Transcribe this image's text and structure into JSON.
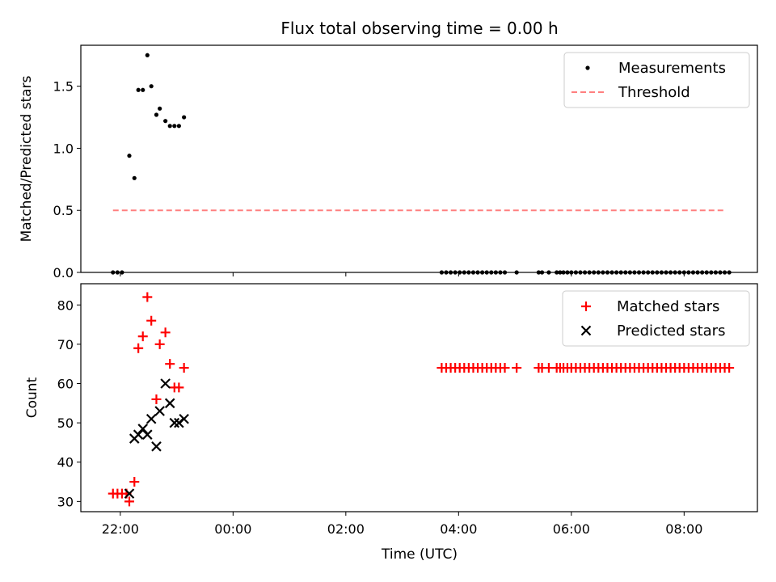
{
  "chart_data": {
    "title": "Flux total observing time = 0.00 h",
    "xlabel": "Time (UTC)",
    "x_unit": "hours since 00:00 UTC (negative = previous evening)",
    "xlim": [
      -2.7,
      9.3
    ],
    "xticks": [
      {
        "value": -2,
        "label": "22:00"
      },
      {
        "value": 0,
        "label": "00:00"
      },
      {
        "value": 2,
        "label": "02:00"
      },
      {
        "value": 4,
        "label": "04:00"
      },
      {
        "value": 6,
        "label": "06:00"
      },
      {
        "value": 8,
        "label": "08:00"
      }
    ],
    "panels": [
      {
        "type": "scatter",
        "ylabel": "Matched/Predicted stars",
        "ylim": [
          0,
          1.83
        ],
        "yticks": [
          {
            "value": 0,
            "label": "0.0"
          },
          {
            "value": 0.5,
            "label": "0.5"
          },
          {
            "value": 1.0,
            "label": "1.0"
          },
          {
            "value": 1.5,
            "label": "1.5"
          }
        ],
        "legend_position": "top-right",
        "series": [
          {
            "name": "Measurements",
            "kind": "points",
            "marker": "dot",
            "color": "#000000",
            "points": [
              [
                -2.13,
                0.0
              ],
              [
                -2.05,
                0.0
              ],
              [
                -1.97,
                0.0
              ],
              [
                -1.84,
                0.94
              ],
              [
                -1.75,
                0.76
              ],
              [
                -1.68,
                1.47
              ],
              [
                -1.6,
                1.47
              ],
              [
                -1.52,
                1.75
              ],
              [
                -1.45,
                1.5
              ],
              [
                -1.36,
                1.27
              ],
              [
                -1.3,
                1.32
              ],
              [
                -1.2,
                1.22
              ],
              [
                -1.12,
                1.18
              ],
              [
                -1.04,
                1.18
              ],
              [
                -0.96,
                1.18
              ],
              [
                -0.87,
                1.25
              ],
              [
                3.7,
                0.0
              ],
              [
                3.78,
                0.0
              ],
              [
                3.86,
                0.0
              ],
              [
                3.94,
                0.0
              ],
              [
                4.02,
                0.0
              ],
              [
                4.1,
                0.0
              ],
              [
                4.18,
                0.0
              ],
              [
                4.26,
                0.0
              ],
              [
                4.34,
                0.0
              ],
              [
                4.42,
                0.0
              ],
              [
                4.5,
                0.0
              ],
              [
                4.58,
                0.0
              ],
              [
                4.66,
                0.0
              ],
              [
                4.74,
                0.0
              ],
              [
                4.82,
                0.0
              ],
              [
                5.03,
                0.0
              ],
              [
                5.42,
                0.0
              ],
              [
                5.48,
                0.0
              ],
              [
                5.6,
                0.0
              ],
              [
                5.74,
                0.0
              ],
              [
                5.8,
                0.0
              ],
              [
                5.86,
                0.0
              ],
              [
                5.93,
                0.0
              ],
              [
                6.0,
                0.0
              ],
              [
                6.08,
                0.0
              ],
              [
                6.16,
                0.0
              ],
              [
                6.24,
                0.0
              ],
              [
                6.32,
                0.0
              ],
              [
                6.4,
                0.0
              ],
              [
                6.48,
                0.0
              ],
              [
                6.56,
                0.0
              ],
              [
                6.64,
                0.0
              ],
              [
                6.72,
                0.0
              ],
              [
                6.8,
                0.0
              ],
              [
                6.88,
                0.0
              ],
              [
                6.96,
                0.0
              ],
              [
                7.04,
                0.0
              ],
              [
                7.12,
                0.0
              ],
              [
                7.2,
                0.0
              ],
              [
                7.28,
                0.0
              ],
              [
                7.36,
                0.0
              ],
              [
                7.44,
                0.0
              ],
              [
                7.52,
                0.0
              ],
              [
                7.6,
                0.0
              ],
              [
                7.68,
                0.0
              ],
              [
                7.76,
                0.0
              ],
              [
                7.84,
                0.0
              ],
              [
                7.92,
                0.0
              ],
              [
                8.0,
                0.0
              ],
              [
                8.08,
                0.0
              ],
              [
                8.16,
                0.0
              ],
              [
                8.24,
                0.0
              ],
              [
                8.32,
                0.0
              ],
              [
                8.4,
                0.0
              ],
              [
                8.48,
                0.0
              ],
              [
                8.56,
                0.0
              ],
              [
                8.64,
                0.0
              ],
              [
                8.72,
                0.0
              ],
              [
                8.8,
                0.0
              ]
            ]
          },
          {
            "name": "Threshold",
            "kind": "line",
            "style": "dashed",
            "color": "#ff7f7f",
            "points": [
              [
                -2.13,
                0.5
              ],
              [
                8.75,
                0.5
              ]
            ]
          }
        ]
      },
      {
        "type": "scatter",
        "ylabel": "Count",
        "ylim": [
          27.4,
          85.4
        ],
        "yticks": [
          {
            "value": 30,
            "label": "30"
          },
          {
            "value": 40,
            "label": "40"
          },
          {
            "value": 50,
            "label": "50"
          },
          {
            "value": 60,
            "label": "60"
          },
          {
            "value": 70,
            "label": "70"
          },
          {
            "value": 80,
            "label": "80"
          }
        ],
        "legend_position": "top-right",
        "series": [
          {
            "name": "Matched stars",
            "kind": "points",
            "marker": "plus",
            "color": "#ff0000",
            "points": [
              [
                -2.13,
                32
              ],
              [
                -2.05,
                32
              ],
              [
                -1.97,
                32
              ],
              [
                -1.89,
                32
              ],
              [
                -1.84,
                30
              ],
              [
                -1.75,
                35
              ],
              [
                -1.68,
                69
              ],
              [
                -1.6,
                72
              ],
              [
                -1.52,
                82
              ],
              [
                -1.45,
                76
              ],
              [
                -1.36,
                56
              ],
              [
                -1.3,
                70
              ],
              [
                -1.2,
                73
              ],
              [
                -1.12,
                65
              ],
              [
                -1.04,
                59
              ],
              [
                -0.96,
                59
              ],
              [
                -0.87,
                64
              ],
              [
                3.7,
                64
              ],
              [
                3.78,
                64
              ],
              [
                3.86,
                64
              ],
              [
                3.94,
                64
              ],
              [
                4.02,
                64
              ],
              [
                4.1,
                64
              ],
              [
                4.18,
                64
              ],
              [
                4.26,
                64
              ],
              [
                4.34,
                64
              ],
              [
                4.42,
                64
              ],
              [
                4.5,
                64
              ],
              [
                4.58,
                64
              ],
              [
                4.66,
                64
              ],
              [
                4.74,
                64
              ],
              [
                4.82,
                64
              ],
              [
                5.03,
                64
              ],
              [
                5.42,
                64
              ],
              [
                5.48,
                64
              ],
              [
                5.6,
                64
              ],
              [
                5.74,
                64
              ],
              [
                5.8,
                64
              ],
              [
                5.86,
                64
              ],
              [
                5.93,
                64
              ],
              [
                6.0,
                64
              ],
              [
                6.08,
                64
              ],
              [
                6.16,
                64
              ],
              [
                6.24,
                64
              ],
              [
                6.32,
                64
              ],
              [
                6.4,
                64
              ],
              [
                6.48,
                64
              ],
              [
                6.56,
                64
              ],
              [
                6.64,
                64
              ],
              [
                6.72,
                64
              ],
              [
                6.8,
                64
              ],
              [
                6.88,
                64
              ],
              [
                6.96,
                64
              ],
              [
                7.04,
                64
              ],
              [
                7.12,
                64
              ],
              [
                7.2,
                64
              ],
              [
                7.28,
                64
              ],
              [
                7.36,
                64
              ],
              [
                7.44,
                64
              ],
              [
                7.52,
                64
              ],
              [
                7.6,
                64
              ],
              [
                7.68,
                64
              ],
              [
                7.76,
                64
              ],
              [
                7.84,
                64
              ],
              [
                7.92,
                64
              ],
              [
                8.0,
                64
              ],
              [
                8.08,
                64
              ],
              [
                8.16,
                64
              ],
              [
                8.24,
                64
              ],
              [
                8.32,
                64
              ],
              [
                8.4,
                64
              ],
              [
                8.48,
                64
              ],
              [
                8.56,
                64
              ],
              [
                8.64,
                64
              ],
              [
                8.72,
                64
              ],
              [
                8.8,
                64
              ]
            ]
          },
          {
            "name": "Predicted stars",
            "kind": "points",
            "marker": "x",
            "color": "#000000",
            "points": [
              [
                -1.84,
                32
              ],
              [
                -1.75,
                46
              ],
              [
                -1.68,
                47
              ],
              [
                -1.6,
                48.5
              ],
              [
                -1.52,
                47
              ],
              [
                -1.45,
                51
              ],
              [
                -1.36,
                44
              ],
              [
                -1.3,
                53
              ],
              [
                -1.2,
                60
              ],
              [
                -1.12,
                55
              ],
              [
                -1.04,
                50
              ],
              [
                -0.96,
                50
              ],
              [
                -0.87,
                51
              ]
            ]
          }
        ]
      }
    ]
  }
}
